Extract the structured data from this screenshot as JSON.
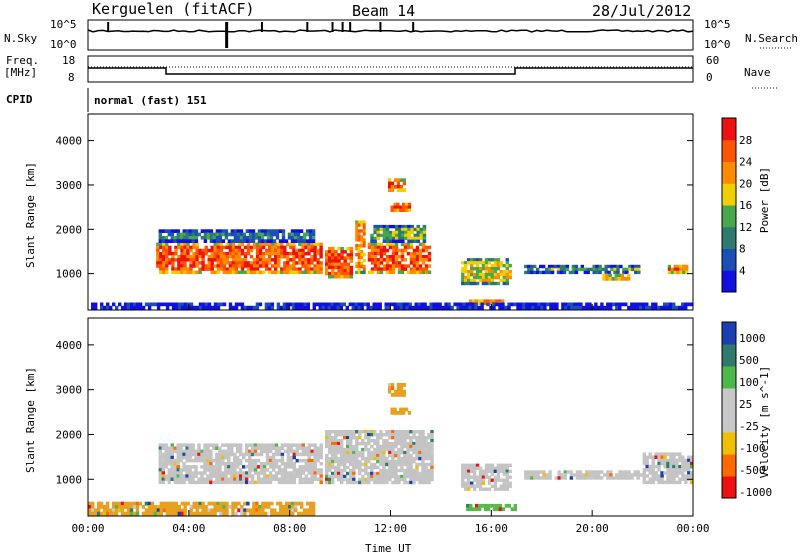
{
  "header": {
    "station": "Kerguelen (fitACF)",
    "beam": "Beam 14",
    "date": "28/Jul/2012"
  },
  "panels": {
    "nsky_label": "N.Sky",
    "nsky_ticks": [
      "10^5",
      "10^0"
    ],
    "nsearch_label": "N.Search",
    "freq_label": "Freq.",
    "freq_unit": "[MHz]",
    "freq_ticks": [
      "18",
      "8"
    ],
    "nave_label": "Nave",
    "nave_ticks": [
      "60",
      "0"
    ],
    "cpid_label": "CPID",
    "cpid_value": "normal (fast) 151"
  },
  "chart_data": [
    {
      "type": "heatmap",
      "name": "power",
      "ylabel": "Slant Range [km]",
      "xlabel": "",
      "xlim": [
        "00:00",
        "24:00"
      ],
      "ylim": [
        180,
        4600
      ],
      "yticks": [
        1000,
        2000,
        3000,
        4000
      ],
      "colorbar": {
        "label": "Power [dB]",
        "ticks": [
          "4",
          "8",
          "12",
          "16",
          "20",
          "24",
          "28"
        ],
        "colors": [
          "#1010e0",
          "#1a4fb8",
          "#2f7a6c",
          "#46a84b",
          "#f0d000",
          "#ff8c00",
          "#ff5500",
          "#ee1111"
        ]
      },
      "regions": [
        {
          "t0": 2.7,
          "t1": 9.3,
          "r0": 1000,
          "r1": 1700,
          "level": 6
        },
        {
          "t0": 2.8,
          "t1": 9.0,
          "r0": 1700,
          "r1": 2000,
          "level": 2
        },
        {
          "t0": 9.4,
          "t1": 10.5,
          "r0": 900,
          "r1": 1600,
          "level": 6
        },
        {
          "t0": 10.6,
          "t1": 11.0,
          "r0": 1000,
          "r1": 2200,
          "level": 5
        },
        {
          "t0": 11.1,
          "t1": 13.6,
          "r0": 1000,
          "r1": 1700,
          "level": 6
        },
        {
          "t0": 11.2,
          "t1": 13.4,
          "r0": 1700,
          "r1": 2100,
          "level": 3
        },
        {
          "t0": 12.0,
          "t1": 12.8,
          "r0": 2400,
          "r1": 2600,
          "level": 7
        },
        {
          "t0": 11.9,
          "t1": 12.6,
          "r0": 2850,
          "r1": 3150,
          "level": 6
        },
        {
          "t0": 14.8,
          "t1": 16.8,
          "r0": 750,
          "r1": 1350,
          "level": 4
        },
        {
          "t0": 15.0,
          "t1": 16.5,
          "r0": 300,
          "r1": 420,
          "level": 7
        },
        {
          "t0": 17.3,
          "t1": 21.9,
          "r0": 1000,
          "r1": 1200,
          "level": 3
        },
        {
          "t0": 20.4,
          "t1": 21.5,
          "r0": 850,
          "r1": 1000,
          "level": 6
        },
        {
          "t0": 23.0,
          "t1": 23.8,
          "r0": 1000,
          "r1": 1200,
          "level": 6
        },
        {
          "t0": 0.0,
          "t1": 24.0,
          "r0": 200,
          "r1": 350,
          "level": 2
        }
      ]
    },
    {
      "type": "heatmap",
      "name": "velocity",
      "ylabel": "Slant Range [km]",
      "xlabel": "Time UT",
      "xlim": [
        "00:00",
        "24:00"
      ],
      "ylim": [
        180,
        4600
      ],
      "yticks": [
        1000,
        2000,
        3000,
        4000
      ],
      "xticks": [
        "00:00",
        "04:00",
        "08:00",
        "12:00",
        "16:00",
        "20:00",
        "00:00"
      ],
      "colorbar": {
        "label": "Velocity [m s^-1]",
        "ticks": [
          "1000",
          "500",
          "100",
          "25",
          "-25",
          "-100",
          "-500",
          "-1000"
        ],
        "colors": [
          "#1a3fb0",
          "#2f7a6c",
          "#4cb84c",
          "#c8c8c8",
          "#c8c8c8",
          "#f0c000",
          "#ff6a00",
          "#ee1111"
        ]
      },
      "regions": [
        {
          "t0": 2.8,
          "t1": 9.3,
          "r0": 900,
          "r1": 1800,
          "level": "gray"
        },
        {
          "t0": 9.4,
          "t1": 13.7,
          "r0": 900,
          "r1": 2100,
          "level": "gray"
        },
        {
          "t0": 12.0,
          "t1": 12.8,
          "r0": 2450,
          "r1": 2600,
          "level": "orange"
        },
        {
          "t0": 11.9,
          "t1": 12.6,
          "r0": 2850,
          "r1": 3150,
          "level": "orange"
        },
        {
          "t0": 14.8,
          "t1": 16.8,
          "r0": 750,
          "r1": 1350,
          "level": "gray"
        },
        {
          "t0": 15.0,
          "t1": 17.0,
          "r0": 300,
          "r1": 450,
          "level": "green"
        },
        {
          "t0": 17.3,
          "t1": 22.0,
          "r0": 1000,
          "r1": 1200,
          "level": "gray"
        },
        {
          "t0": 22.0,
          "t1": 24.0,
          "r0": 900,
          "r1": 1600,
          "level": "gray"
        },
        {
          "t0": 0.0,
          "t1": 9.0,
          "r0": 200,
          "r1": 500,
          "level": "orange"
        }
      ]
    }
  ]
}
